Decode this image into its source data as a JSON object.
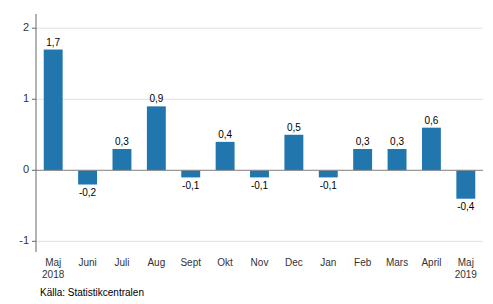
{
  "chart_data": {
    "type": "bar",
    "categories": [
      "Maj\n2018",
      "Juni",
      "Juli",
      "Aug",
      "Sept",
      "Okt",
      "Nov",
      "Dec",
      "Jan",
      "Feb",
      "Mars",
      "April",
      "Maj\n2019"
    ],
    "values": [
      1.7,
      -0.2,
      0.3,
      0.9,
      -0.1,
      0.4,
      -0.1,
      0.5,
      -0.1,
      0.3,
      0.3,
      0.6,
      -0.4
    ],
    "value_labels": [
      "1,7",
      "-0,2",
      "0,3",
      "0,9",
      "-0,1",
      "0,4",
      "-0,1",
      "0,5",
      "-0,1",
      "0,3",
      "0,3",
      "0,6",
      "-0,4"
    ],
    "data_labels": true,
    "color": "#2176ae",
    "ylim": [
      -1.15,
      2.2
    ],
    "yticks": [
      -1,
      0,
      1,
      2
    ],
    "grid": true,
    "source": "Källa: Statistikcentralen"
  }
}
